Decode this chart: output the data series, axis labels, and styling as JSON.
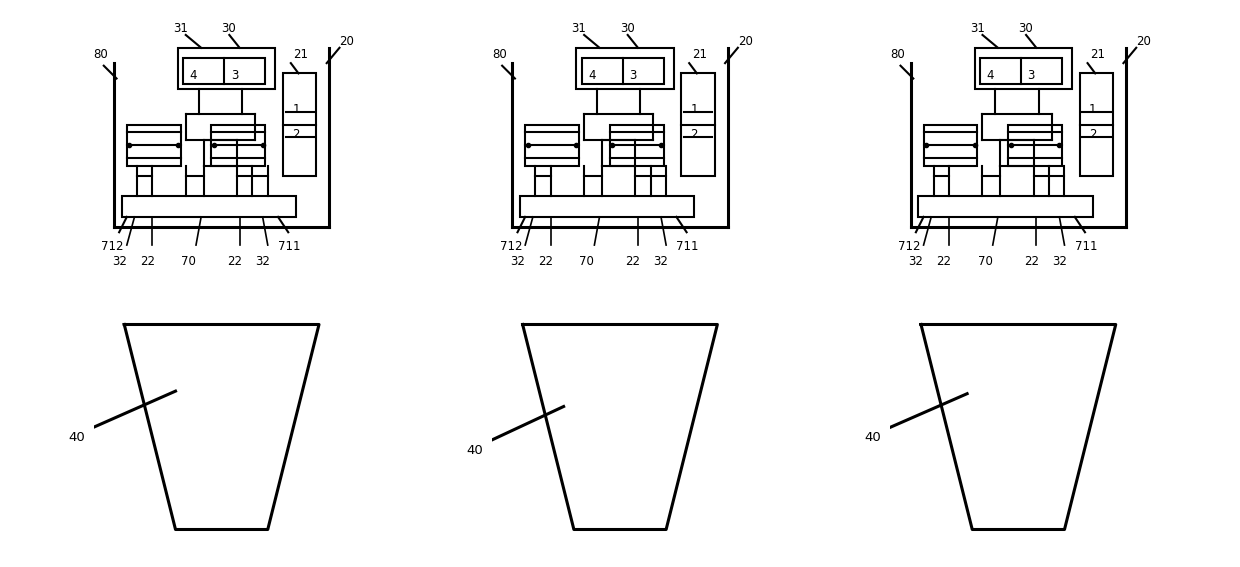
{
  "bg_color": "#ffffff",
  "line_color": "#000000",
  "lw": 1.5,
  "lw_thick": 2.2,
  "fs": 8.5
}
